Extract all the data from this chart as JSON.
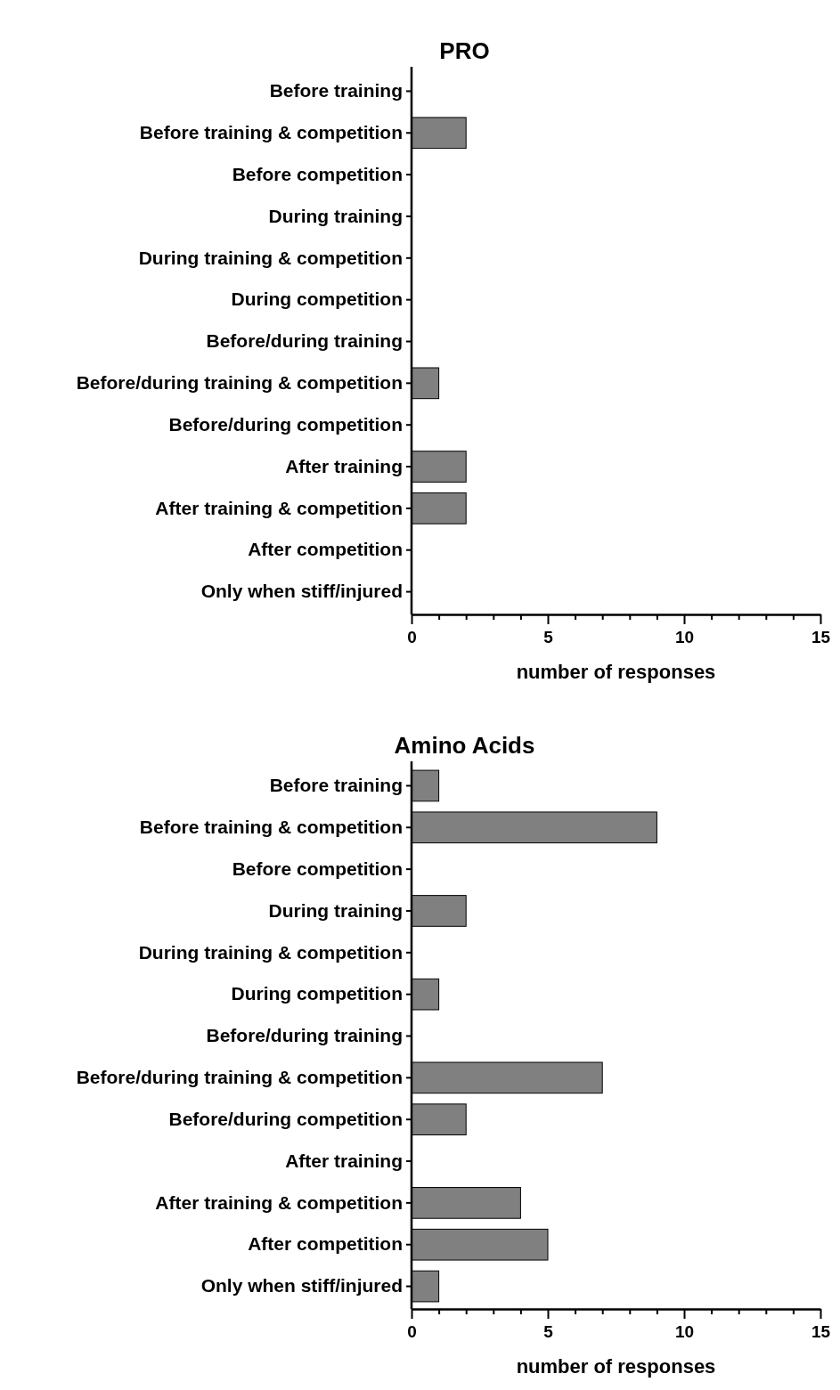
{
  "chart_data": [
    {
      "type": "bar",
      "orientation": "horizontal",
      "title": "PRO",
      "xlabel": "number of responses",
      "categories": [
        "Before training",
        "Before training & competition",
        "Before competition",
        "During training",
        "During training & competition",
        "During competition",
        "Before/during training",
        "Before/during training & competition",
        "Before/during competition",
        "After training",
        "After training & competition",
        "After competition",
        "Only when stiff/injured"
      ],
      "values": [
        0,
        2,
        0,
        0,
        0,
        0,
        0,
        1,
        0,
        2,
        2,
        0,
        0
      ],
      "color": "#808080",
      "xlim": [
        0,
        15
      ],
      "xticks": [
        0,
        {
          "value": 1,
          "label": null
        },
        {
          "value": 2,
          "label": null
        },
        {
          "value": 3,
          "label": null
        },
        {
          "value": 4,
          "label": null
        },
        5,
        {
          "value": 6,
          "label": null
        },
        {
          "value": 7,
          "label": null
        },
        {
          "value": 8,
          "label": null
        },
        {
          "value": 9,
          "label": null
        },
        10,
        {
          "value": 11,
          "label": null
        },
        {
          "value": 12,
          "label": null
        },
        {
          "value": 13,
          "label": null
        },
        {
          "value": 14,
          "label": null
        },
        15
      ],
      "grid": false
    },
    {
      "type": "bar",
      "orientation": "horizontal",
      "title": "Amino Acids",
      "xlabel": "number of responses",
      "categories": [
        "Before training",
        "Before training & competition",
        "Before competition",
        "During training",
        "During training & competition",
        "During competition",
        "Before/during training",
        "Before/during training & competition",
        "Before/during competition",
        "After training",
        "After training & competition",
        "After competition",
        "Only when stiff/injured"
      ],
      "values": [
        1,
        9,
        0,
        2,
        0,
        1,
        0,
        7,
        2,
        0,
        4,
        5,
        1
      ],
      "color": "#808080",
      "xlim": [
        0,
        15
      ],
      "xticks": [
        0,
        {
          "value": 1,
          "label": null
        },
        {
          "value": 2,
          "label": null
        },
        {
          "value": 3,
          "label": null
        },
        {
          "value": 4,
          "label": null
        },
        5,
        {
          "value": 6,
          "label": null
        },
        {
          "value": 7,
          "label": null
        },
        {
          "value": 8,
          "label": null
        },
        {
          "value": 9,
          "label": null
        },
        10,
        {
          "value": 11,
          "label": null
        },
        {
          "value": 12,
          "label": null
        },
        {
          "value": 13,
          "label": null
        },
        {
          "value": 14,
          "label": null
        },
        15
      ],
      "grid": false
    }
  ]
}
